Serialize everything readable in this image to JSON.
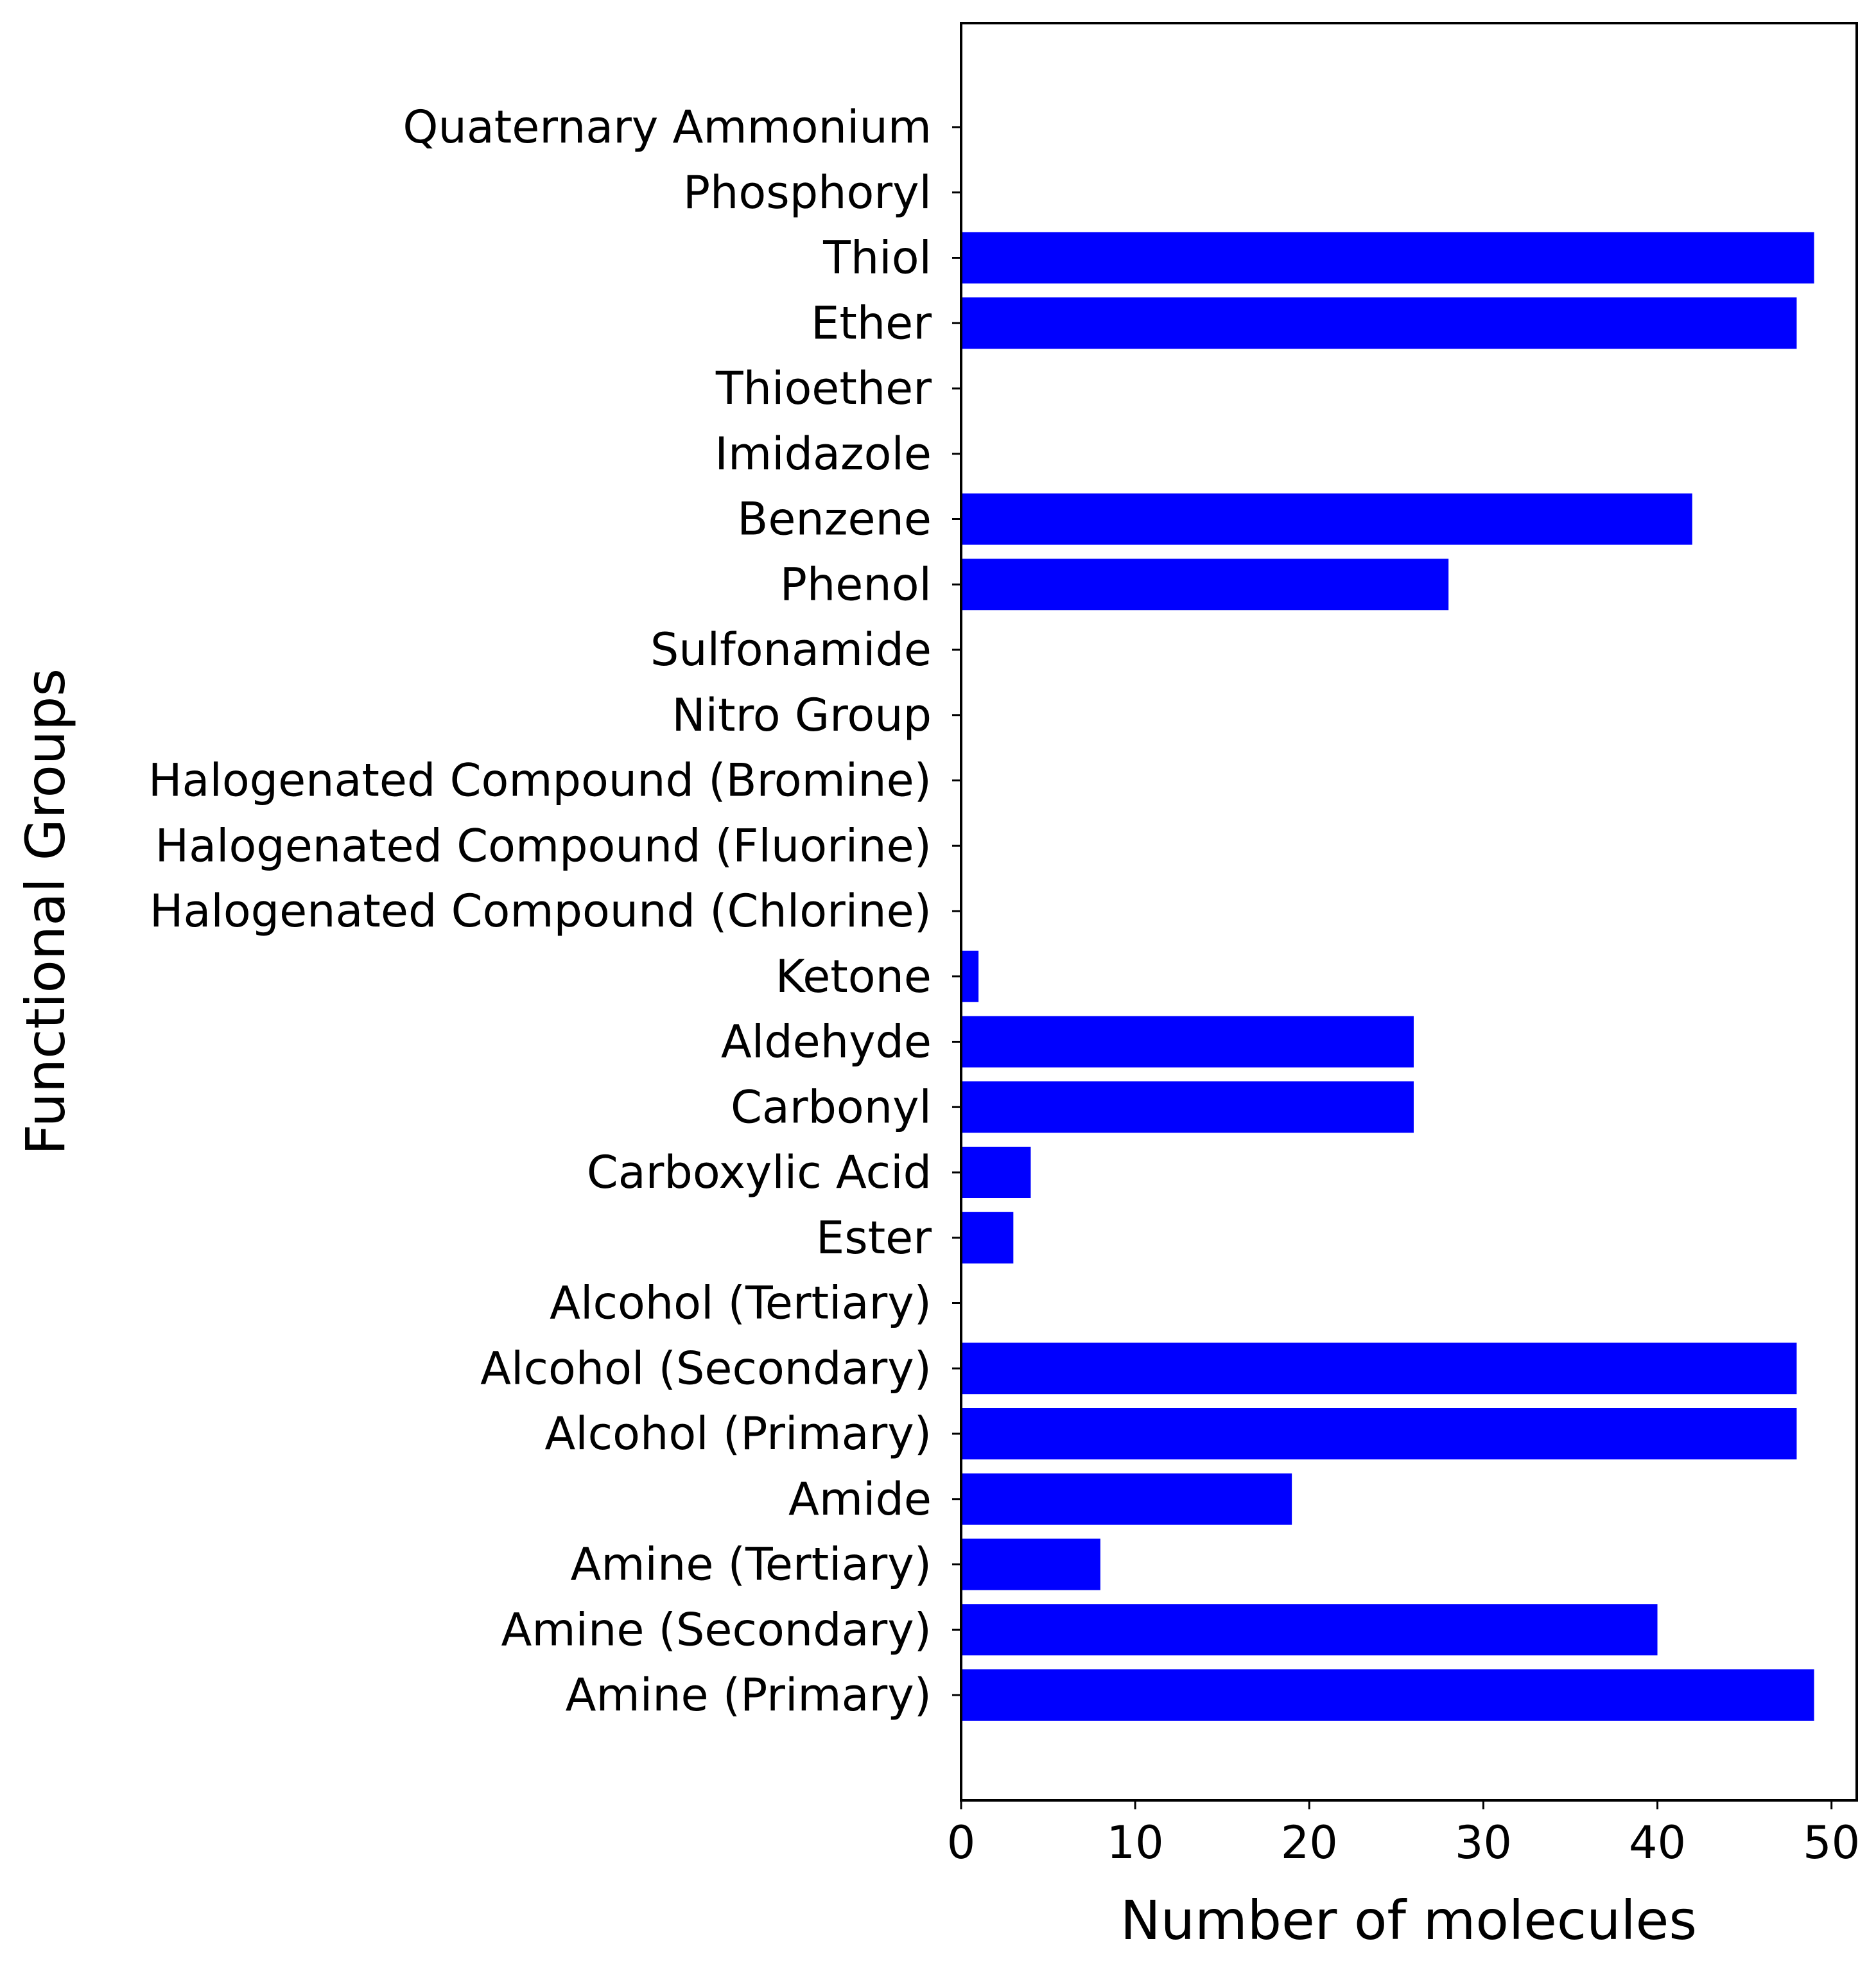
{
  "chart_data": {
    "type": "bar",
    "orientation": "horizontal",
    "categories": [
      "Amine (Primary)",
      "Amine (Secondary)",
      "Amine (Tertiary)",
      "Amide",
      "Alcohol (Primary)",
      "Alcohol (Secondary)",
      "Alcohol (Tertiary)",
      "Ester",
      "Carboxylic Acid",
      "Carbonyl",
      "Aldehyde",
      "Ketone",
      "Halogenated Compound (Chlorine)",
      "Halogenated Compound (Fluorine)",
      "Halogenated Compound (Bromine)",
      "Nitro Group",
      "Sulfonamide",
      "Phenol",
      "Benzene",
      "Imidazole",
      "Thioether",
      "Ether",
      "Thiol",
      "Phosphoryl",
      "Quaternary Ammonium"
    ],
    "values": [
      49,
      40,
      8,
      19,
      48,
      48,
      0,
      3,
      4,
      26,
      26,
      1,
      0,
      0,
      0,
      0,
      0,
      28,
      42,
      0,
      0,
      48,
      49,
      0,
      0
    ],
    "title": "",
    "xlabel": "Number of molecules",
    "ylabel": "Functional Groups",
    "xlim": [
      0,
      51.45
    ],
    "xticks": [
      0,
      10,
      20,
      30,
      40,
      50
    ],
    "bar_color": "#0000ff",
    "grid": false
  }
}
